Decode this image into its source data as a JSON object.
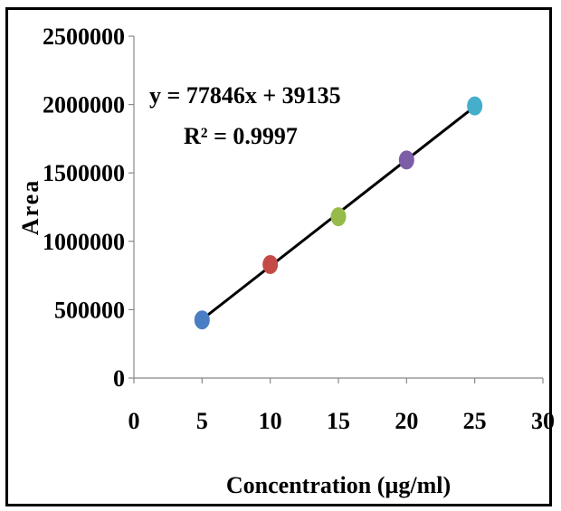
{
  "chart_data": {
    "type": "scatter",
    "xlabel": "Concentration (µg/ml)",
    "ylabel": "Area",
    "xlim": [
      0,
      30
    ],
    "ylim": [
      0,
      2500000
    ],
    "x_ticks": [
      "0",
      "5",
      "10",
      "15",
      "20",
      "25",
      "30"
    ],
    "y_ticks": [
      "0",
      "500000",
      "1000000",
      "1500000",
      "2000000",
      "2500000"
    ],
    "grid": false,
    "legend": "none",
    "series": [
      {
        "points": [
          {
            "x": 5,
            "y": 425000,
            "color": "#4a7ec4"
          },
          {
            "x": 10,
            "y": 830000,
            "color": "#c44a47"
          },
          {
            "x": 15,
            "y": 1180000,
            "color": "#96bb4a"
          },
          {
            "x": 20,
            "y": 1595000,
            "color": "#7d5ea6"
          },
          {
            "x": 25,
            "y": 1990000,
            "color": "#45aecb"
          }
        ]
      }
    ],
    "trendline": {
      "slope": 77846,
      "intercept": 39135,
      "x_range": [
        5,
        25
      ],
      "color": "#000000"
    },
    "annotations": {
      "equation": "y = 77846x + 39135",
      "r_squared": "R² = 0.9997"
    }
  }
}
